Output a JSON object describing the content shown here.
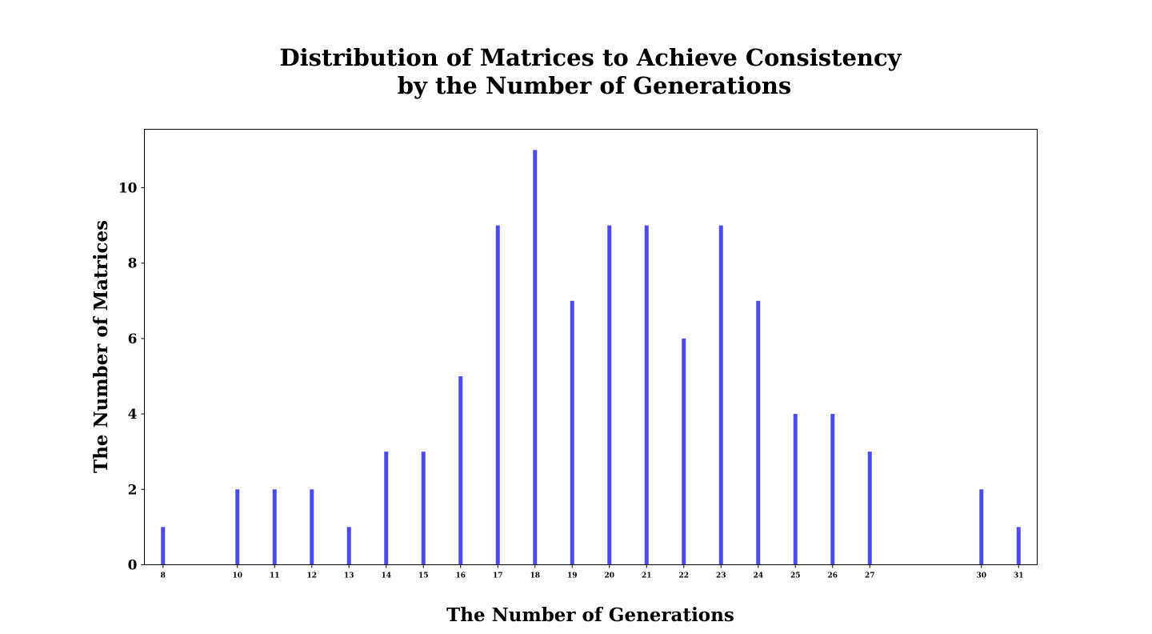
{
  "chart_data": {
    "type": "bar",
    "title_lines": [
      "Distribution of Matrices to Achieve Consistency",
      "by the Number of Generations"
    ],
    "xlabel": "The Number of Generations",
    "ylabel": "The Number of Matrices",
    "x": [
      8,
      10,
      11,
      12,
      13,
      14,
      15,
      16,
      17,
      18,
      19,
      20,
      21,
      22,
      23,
      24,
      25,
      26,
      27,
      30,
      31
    ],
    "values": [
      1,
      2,
      2,
      2,
      1,
      3,
      3,
      5,
      9,
      11,
      7,
      9,
      9,
      6,
      9,
      7,
      4,
      4,
      3,
      2,
      1
    ],
    "xticks": [
      "8",
      "10",
      "11",
      "12",
      "13",
      "14",
      "15",
      "16",
      "17",
      "18",
      "19",
      "20",
      "21",
      "22",
      "23",
      "24",
      "25",
      "26",
      "27",
      "30",
      "31"
    ],
    "yticks": [
      "0",
      "2",
      "4",
      "6",
      "8",
      "10"
    ],
    "xlim": [
      7.5,
      31.5
    ],
    "ylim": [
      0,
      11.55
    ],
    "bar_color": "#4b4bef",
    "grid": false,
    "legend": "none"
  }
}
